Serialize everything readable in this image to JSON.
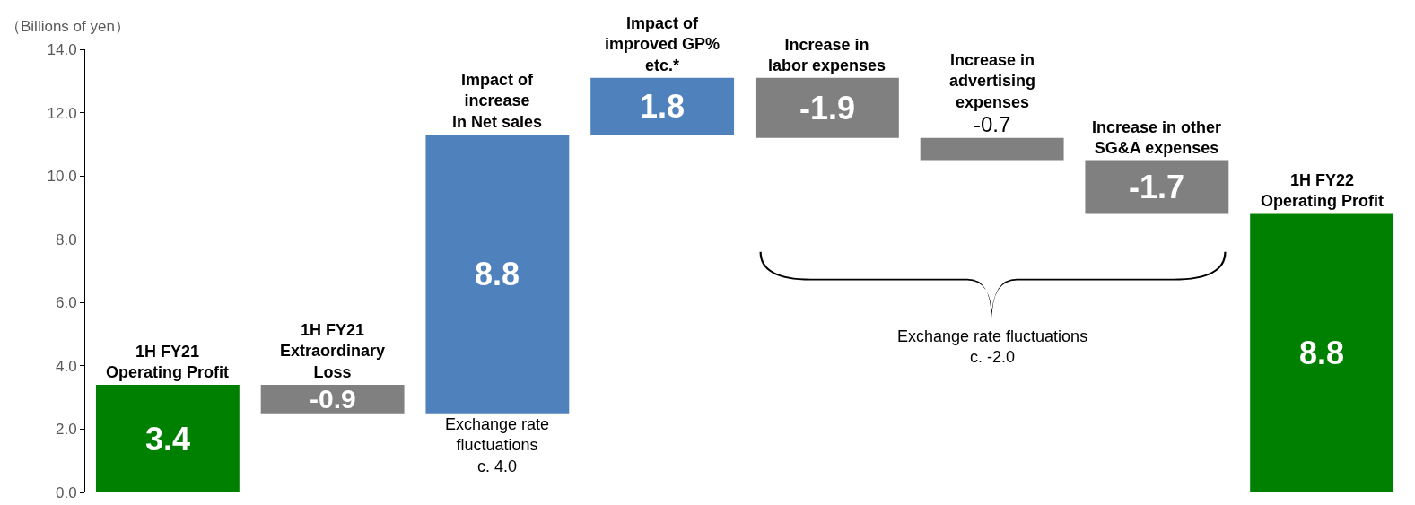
{
  "chart_data": {
    "type": "bar",
    "ylabel": "（Billions of yen）",
    "categories": [
      "1H FY21\nOperating Profit",
      "1H FY21\nExtraordinary\nLoss",
      "Impact of\nincrease\nin Net sales",
      "Impact of\nimproved GP%\netc.*",
      "Increase in\nlabor expenses",
      "Increase in\nadvertising\nexpenses",
      "Increase in other\nSG&A expenses",
      "1H FY22\nOperating Profit"
    ],
    "values": [
      3.4,
      -0.9,
      8.8,
      1.8,
      -1.9,
      -0.7,
      -1.7,
      8.8
    ],
    "base": [
      0,
      3.4,
      2.5,
      11.3,
      13.1,
      11.2,
      10.5,
      0
    ],
    "colors": [
      "#008000",
      "#808080",
      "#4f81bd",
      "#4f81bd",
      "#808080",
      "#808080",
      "#808080",
      "#008000"
    ],
    "data_labels": true,
    "ylim": [
      0,
      14
    ],
    "yticks": [
      {
        "value": 0,
        "label": "0.0"
      },
      {
        "value": 2,
        "label": "2.0"
      },
      {
        "value": 4,
        "label": "4.0"
      },
      {
        "value": 6,
        "label": "6.0"
      },
      {
        "value": 8,
        "label": "8.0"
      },
      {
        "value": 10,
        "label": "10.0"
      },
      {
        "value": 12,
        "label": "12.0"
      },
      {
        "value": 14,
        "label": "14.0"
      }
    ],
    "tick_labels": "y",
    "legend": false,
    "ref_lines": [
      {
        "axis": "y",
        "value": 0,
        "color": "#000000",
        "line_style": "dashed"
      }
    ],
    "annotations": [
      "Exchange rate\nfluctuations\nc. 4.0",
      "Exchange rate fluctuations\nc. -2.0"
    ]
  }
}
